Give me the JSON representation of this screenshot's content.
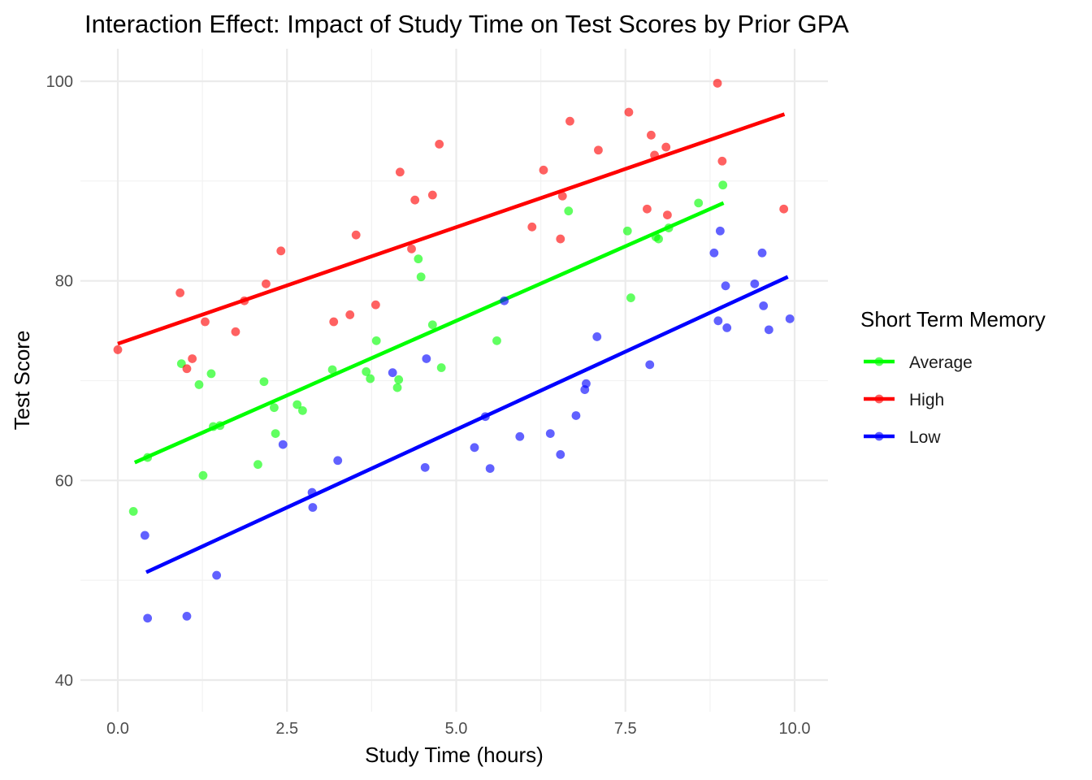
{
  "chart_data": {
    "type": "scatter",
    "title": "Interaction Effect: Impact of Study Time on Test Scores by Prior GPA",
    "xlabel": "Study Time (hours)",
    "ylabel": "Test Score",
    "xlim": [
      -0.5,
      10.5
    ],
    "ylim": [
      36.5,
      103
    ],
    "x_ticks": [
      0.0,
      2.5,
      5.0,
      7.5,
      10.0
    ],
    "x_tick_labels": [
      "0.0",
      "2.5",
      "5.0",
      "7.5",
      "10.0"
    ],
    "y_ticks": [
      40,
      60,
      80,
      100
    ],
    "y_tick_labels": [
      "40",
      "60",
      "80",
      "100"
    ],
    "grid": true,
    "legend": {
      "title": "Short Term Memory",
      "position": "right"
    },
    "series": [
      {
        "name": "Average",
        "color": "#00ff00",
        "fit_line": [
          [
            0.25,
            61.8
          ],
          [
            8.95,
            87.8
          ]
        ],
        "points": [
          [
            0.23,
            56.9
          ],
          [
            0.44,
            62.3
          ],
          [
            0.94,
            71.7
          ],
          [
            1.2,
            69.6
          ],
          [
            1.26,
            60.5
          ],
          [
            1.38,
            70.7
          ],
          [
            1.41,
            65.4
          ],
          [
            1.51,
            65.5
          ],
          [
            2.07,
            61.6
          ],
          [
            2.16,
            69.9
          ],
          [
            2.31,
            67.3
          ],
          [
            2.33,
            64.7
          ],
          [
            2.65,
            67.6
          ],
          [
            2.73,
            67.0
          ],
          [
            3.17,
            71.1
          ],
          [
            3.67,
            70.9
          ],
          [
            3.73,
            70.2
          ],
          [
            3.82,
            74.0
          ],
          [
            4.13,
            69.3
          ],
          [
            4.15,
            70.1
          ],
          [
            4.44,
            82.2
          ],
          [
            4.48,
            80.4
          ],
          [
            4.65,
            75.6
          ],
          [
            4.78,
            71.3
          ],
          [
            5.6,
            74.0
          ],
          [
            6.66,
            87.0
          ],
          [
            7.53,
            85.0
          ],
          [
            7.58,
            78.3
          ],
          [
            7.95,
            84.4
          ],
          [
            7.99,
            84.2
          ],
          [
            8.14,
            85.3
          ],
          [
            8.58,
            87.8
          ],
          [
            8.94,
            89.6
          ]
        ]
      },
      {
        "name": "High",
        "color": "#ff0000",
        "fit_line": [
          [
            0.0,
            73.7
          ],
          [
            9.85,
            96.7
          ]
        ],
        "points": [
          [
            0.0,
            73.1
          ],
          [
            0.92,
            78.8
          ],
          [
            1.02,
            71.2
          ],
          [
            1.1,
            72.2
          ],
          [
            1.29,
            75.9
          ],
          [
            1.74,
            74.9
          ],
          [
            1.87,
            78.0
          ],
          [
            2.19,
            79.7
          ],
          [
            2.41,
            83.0
          ],
          [
            3.19,
            75.9
          ],
          [
            3.43,
            76.6
          ],
          [
            3.52,
            84.6
          ],
          [
            3.81,
            77.6
          ],
          [
            4.17,
            90.9
          ],
          [
            4.34,
            83.2
          ],
          [
            4.39,
            88.1
          ],
          [
            4.65,
            88.6
          ],
          [
            4.75,
            93.7
          ],
          [
            6.12,
            85.4
          ],
          [
            6.29,
            91.1
          ],
          [
            6.54,
            84.2
          ],
          [
            6.57,
            88.5
          ],
          [
            6.68,
            96.0
          ],
          [
            7.1,
            93.1
          ],
          [
            7.55,
            96.9
          ],
          [
            7.82,
            87.2
          ],
          [
            7.88,
            94.6
          ],
          [
            7.93,
            92.6
          ],
          [
            8.1,
            93.4
          ],
          [
            8.12,
            86.6
          ],
          [
            8.86,
            99.8
          ],
          [
            8.93,
            92.0
          ],
          [
            9.84,
            87.2
          ]
        ]
      },
      {
        "name": "Low",
        "color": "#0000ff",
        "fit_line": [
          [
            0.42,
            50.8
          ],
          [
            9.9,
            80.4
          ]
        ],
        "points": [
          [
            0.4,
            54.5
          ],
          [
            0.44,
            46.2
          ],
          [
            1.02,
            46.4
          ],
          [
            1.46,
            50.5
          ],
          [
            2.44,
            63.6
          ],
          [
            2.87,
            58.8
          ],
          [
            2.88,
            57.3
          ],
          [
            3.25,
            62.0
          ],
          [
            4.06,
            70.8
          ],
          [
            4.54,
            61.3
          ],
          [
            4.56,
            72.2
          ],
          [
            5.27,
            63.3
          ],
          [
            5.43,
            66.4
          ],
          [
            5.5,
            61.2
          ],
          [
            5.71,
            78.0
          ],
          [
            5.94,
            64.4
          ],
          [
            6.39,
            64.7
          ],
          [
            6.54,
            62.6
          ],
          [
            6.77,
            66.5
          ],
          [
            6.9,
            69.1
          ],
          [
            6.92,
            69.7
          ],
          [
            7.08,
            74.4
          ],
          [
            7.86,
            71.6
          ],
          [
            8.81,
            82.8
          ],
          [
            8.87,
            76.0
          ],
          [
            8.9,
            85.0
          ],
          [
            8.98,
            79.5
          ],
          [
            9.0,
            75.3
          ],
          [
            9.41,
            79.7
          ],
          [
            9.52,
            82.8
          ],
          [
            9.54,
            77.5
          ],
          [
            9.62,
            75.1
          ],
          [
            9.93,
            76.2
          ]
        ]
      }
    ]
  }
}
